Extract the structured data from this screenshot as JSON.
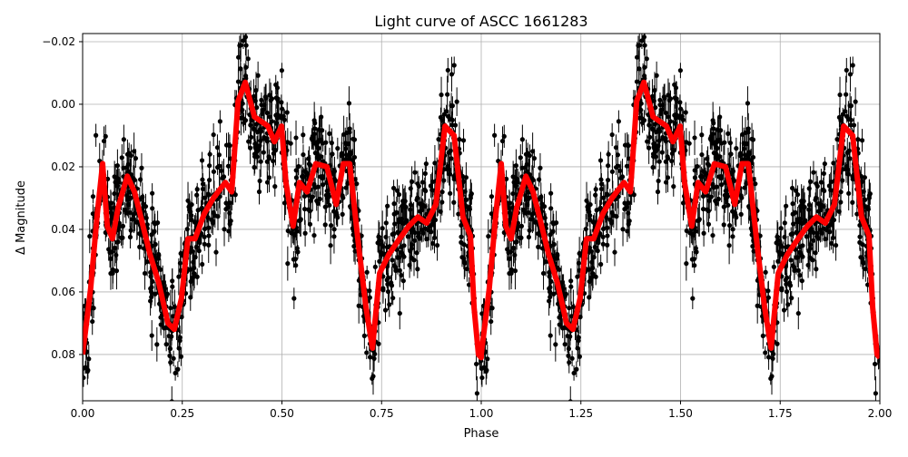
{
  "chart_data": {
    "type": "scatter",
    "title": "Light curve of ASCC 1661283",
    "xlabel": "Phase",
    "ylabel": "Δ Magnitude",
    "xlim": [
      0,
      2
    ],
    "ylim": [
      0.0948,
      -0.0226
    ],
    "y_inverted": true,
    "grid": true,
    "xticks": [
      0,
      0.25,
      0.5,
      0.75,
      1.0,
      1.25,
      1.5,
      1.75,
      2.0
    ],
    "xtick_labels": [
      "0.00",
      "0.25",
      "0.50",
      "0.75",
      "1.00",
      "1.25",
      "1.50",
      "1.75",
      "2.00"
    ],
    "yticks": [
      -0.02,
      0.0,
      0.02,
      0.04,
      0.06,
      0.08
    ],
    "ytick_labels": [
      "−0.02",
      "0.00",
      "0.02",
      "0.04",
      "0.06",
      "0.08"
    ],
    "colors": {
      "points": "#000000",
      "model": "#ff0000",
      "grid": "#b0b0b0"
    },
    "model_period_repeats": 2,
    "model": {
      "phase": [
        0.0,
        0.02,
        0.036,
        0.05,
        0.062,
        0.075,
        0.089,
        0.112,
        0.13,
        0.146,
        0.169,
        0.191,
        0.214,
        0.23,
        0.248,
        0.264,
        0.282,
        0.305,
        0.328,
        0.358,
        0.374,
        0.39,
        0.408,
        0.431,
        0.465,
        0.481,
        0.499,
        0.51,
        0.528,
        0.544,
        0.563,
        0.585,
        0.613,
        0.636,
        0.654,
        0.67,
        0.692,
        0.711,
        0.727,
        0.745,
        0.768,
        0.795,
        0.818,
        0.841,
        0.863,
        0.886,
        0.909,
        0.932,
        0.954,
        0.973,
        0.982,
        0.993,
        1.0
      ],
      "magnitude": [
        0.08,
        0.059,
        0.036,
        0.019,
        0.039,
        0.043,
        0.033,
        0.023,
        0.028,
        0.036,
        0.048,
        0.057,
        0.07,
        0.072,
        0.062,
        0.043,
        0.043,
        0.035,
        0.03,
        0.025,
        0.028,
        -0.001,
        -0.007,
        0.004,
        0.007,
        0.012,
        0.007,
        0.025,
        0.039,
        0.025,
        0.028,
        0.019,
        0.02,
        0.032,
        0.019,
        0.019,
        0.045,
        0.065,
        0.078,
        0.054,
        0.048,
        0.043,
        0.039,
        0.036,
        0.038,
        0.032,
        0.007,
        0.01,
        0.036,
        0.042,
        0.065,
        0.08,
        0.081
      ]
    },
    "observations_note": "dense black points with vertical error bars scattered around the model"
  }
}
